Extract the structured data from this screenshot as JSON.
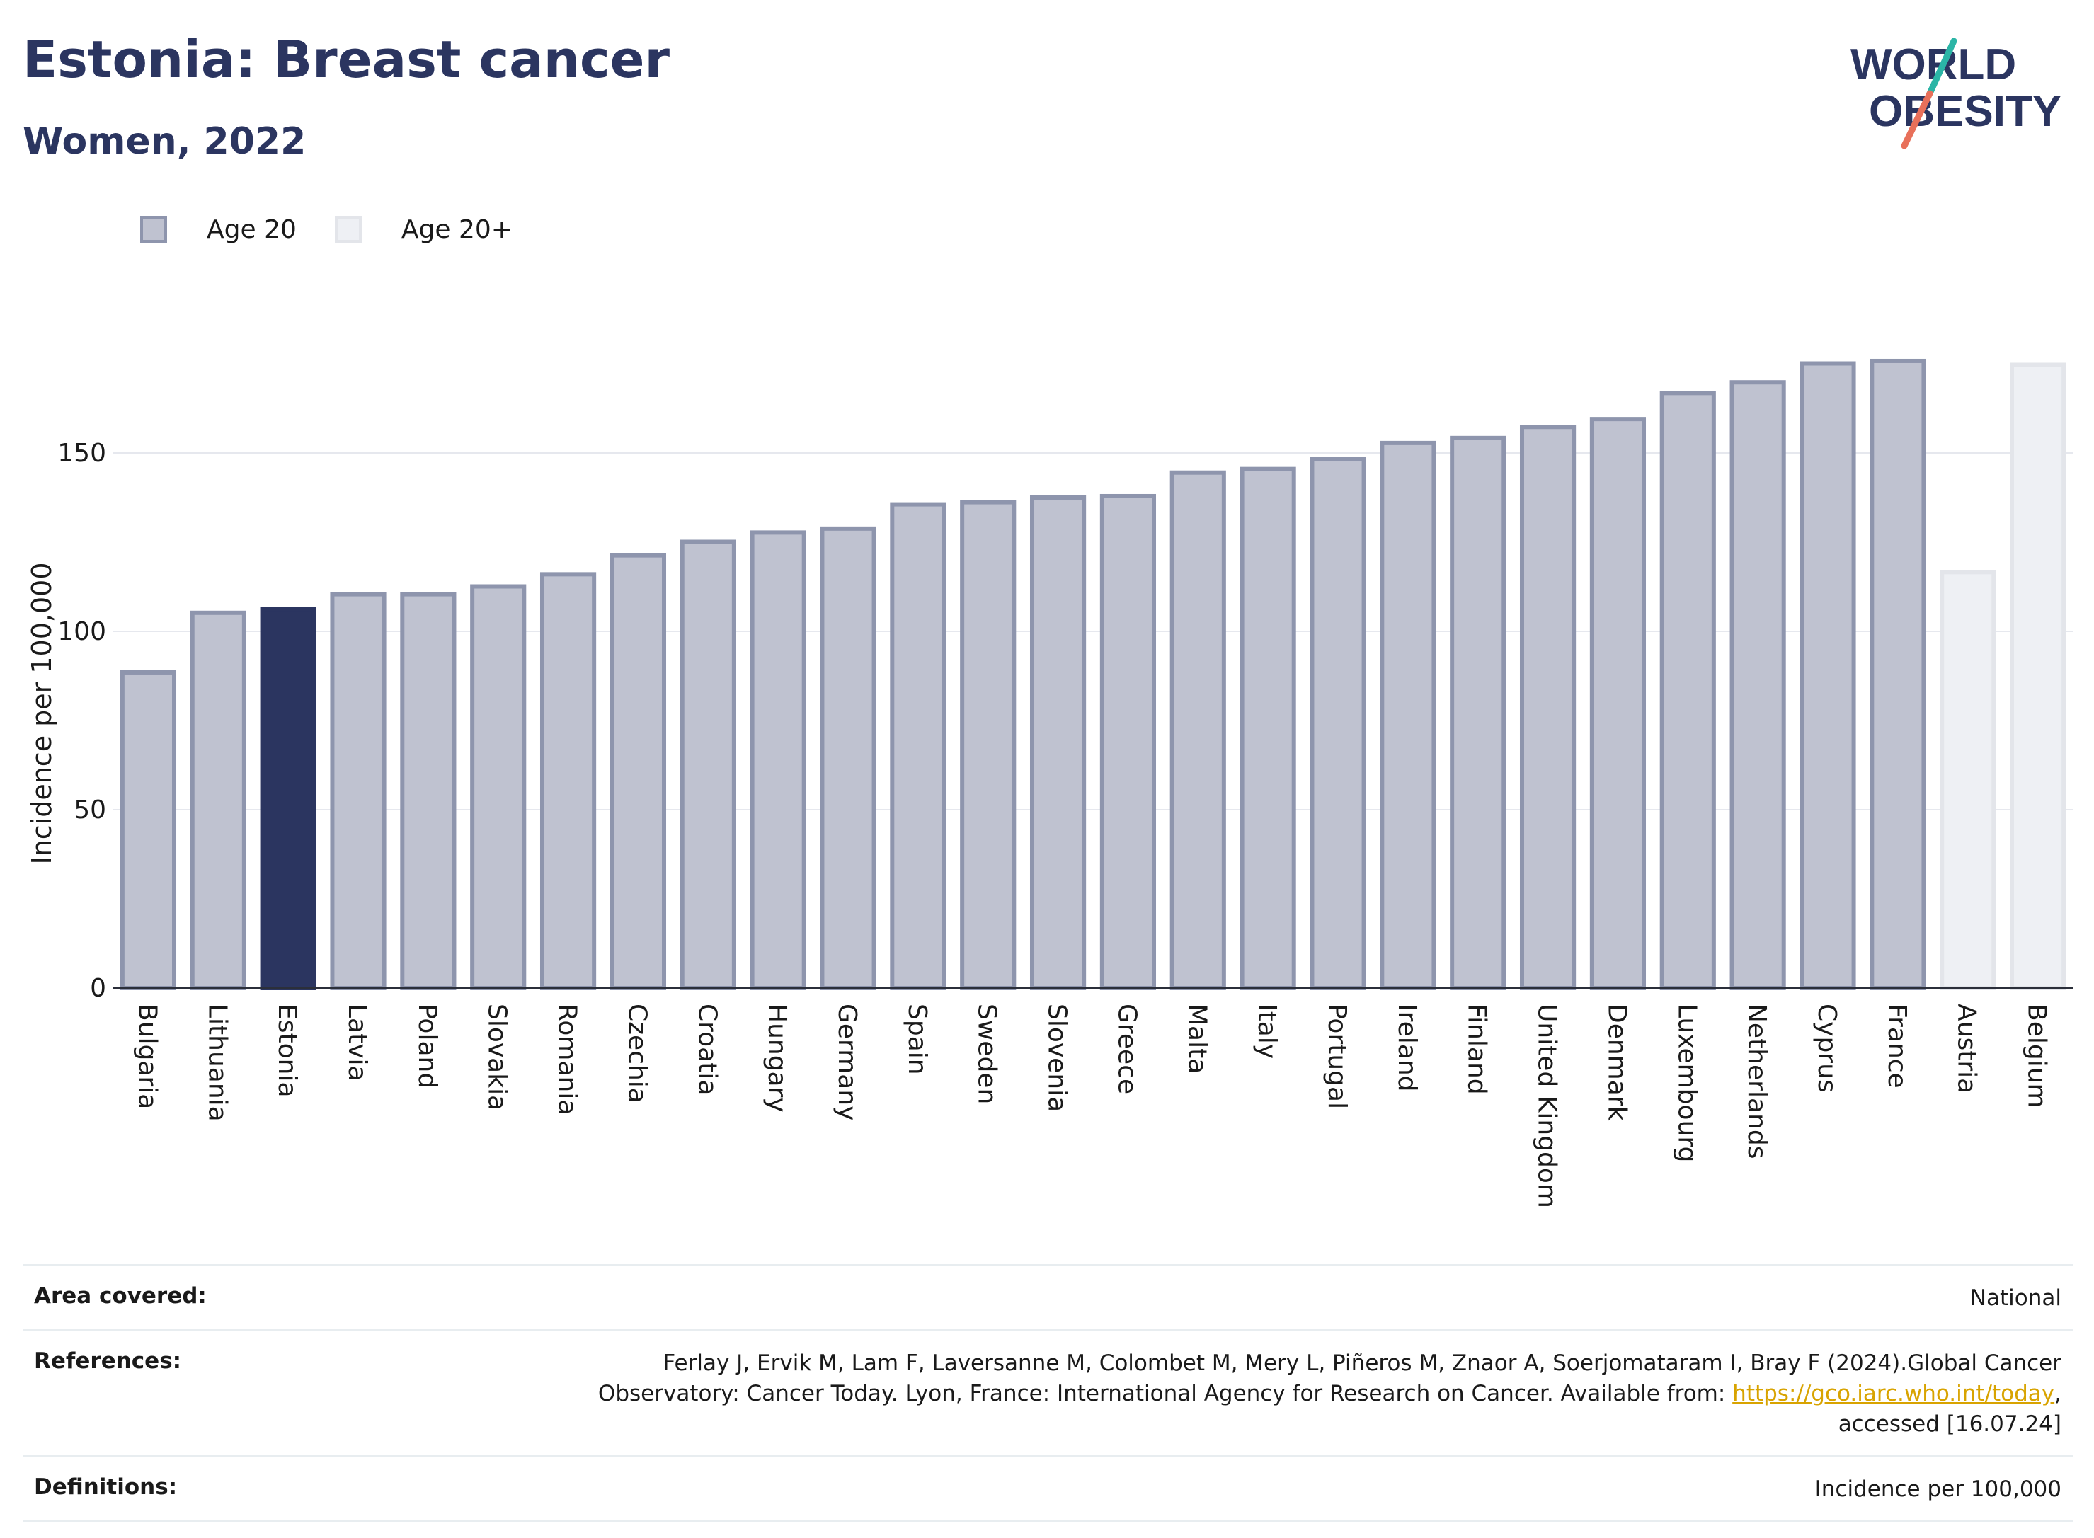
{
  "header": {
    "title": "Estonia: Breast cancer",
    "subtitle": "Women, 2022"
  },
  "logo": {
    "line1": "WORLD",
    "line2": "OBESITY"
  },
  "legend": [
    {
      "label": "Age 20",
      "color": "#bfc2d0",
      "border": "#8e95ad"
    },
    {
      "label": "Age 20+",
      "color": "#eef0f4",
      "border": "#e3e5ea"
    }
  ],
  "colors": {
    "highlight": "#2b3560",
    "age20_fill": "#bfc2d0",
    "age20_border": "#8e95ad",
    "age20plus_fill": "#eef0f4",
    "age20plus_border": "#e3e5ea"
  },
  "chart_data": {
    "type": "bar",
    "ylabel": "Incidence per 100,000",
    "ylim": [
      0,
      185
    ],
    "yticks": [
      0,
      50,
      100,
      150
    ],
    "grid": true,
    "legend_position": "top-left",
    "highlight": "Estonia",
    "categories": [
      "Bulgaria",
      "Lithuania",
      "Estonia",
      "Latvia",
      "Poland",
      "Slovakia",
      "Romania",
      "Czechia",
      "Croatia",
      "Hungary",
      "Germany",
      "Spain",
      "Sweden",
      "Slovenia",
      "Greece",
      "Malta",
      "Italy",
      "Portugal",
      "Ireland",
      "Finland",
      "United Kingdom",
      "Denmark",
      "Luxembourg",
      "Netherlands",
      "Cyprus",
      "France",
      "Austria",
      "Belgium"
    ],
    "values": [
      88.5,
      105.2,
      106.3,
      110.4,
      110.4,
      112.6,
      116.0,
      121.3,
      125.1,
      127.7,
      128.8,
      135.6,
      136.2,
      137.5,
      137.9,
      144.5,
      145.5,
      148.4,
      152.8,
      154.2,
      157.3,
      159.5,
      166.8,
      169.8,
      175.1,
      175.8,
      116.6,
      174.7
    ],
    "series_group": [
      "Age 20",
      "Age 20",
      "Age 20",
      "Age 20",
      "Age 20",
      "Age 20",
      "Age 20",
      "Age 20",
      "Age 20",
      "Age 20",
      "Age 20",
      "Age 20",
      "Age 20",
      "Age 20",
      "Age 20",
      "Age 20",
      "Age 20",
      "Age 20",
      "Age 20",
      "Age 20",
      "Age 20",
      "Age 20",
      "Age 20",
      "Age 20",
      "Age 20",
      "Age 20",
      "Age 20+",
      "Age 20+"
    ]
  },
  "footer": {
    "area_label": "Area covered:",
    "area_value": "National",
    "references_label": "References:",
    "references_text_1": "Ferlay J, Ervik M, Lam F, Laversanne M, Colombet M, Mery L, Piñeros M, Znaor A, Soerjomataram I, Bray F (2024).Global Cancer",
    "references_text_2": "Observatory: Cancer Today. Lyon, France: International Agency for Research on Cancer. Available from: ",
    "references_link": "https://gco.iarc.who.int/today",
    "references_text_3": ",",
    "references_text_4": "accessed [16.07.24]",
    "definitions_label": "Definitions:",
    "definitions_value": "Incidence per 100,000"
  }
}
